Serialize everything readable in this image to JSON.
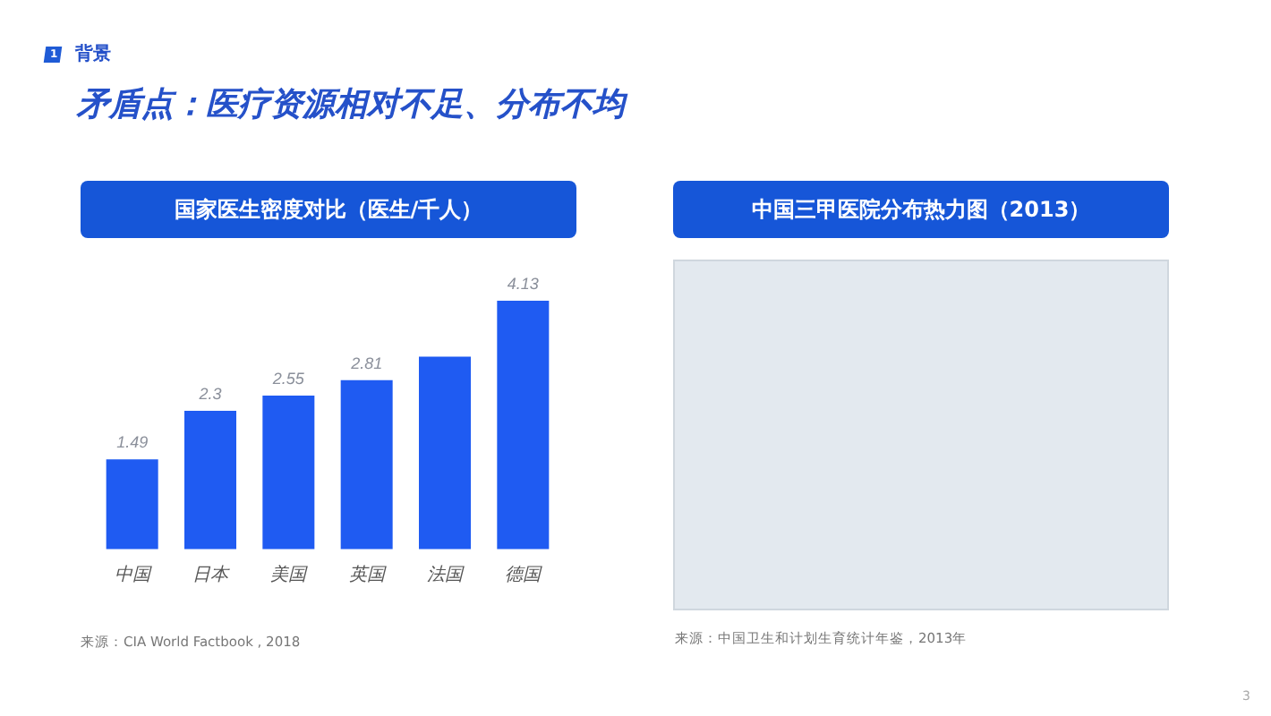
{
  "chart_data": [
    {
      "type": "bar",
      "title": "矛盾点：医疗资源相对不足、分布不均",
      "subtitle": "国家医生密度对比（医生/千人）",
      "categories": [
        "中国",
        "日本",
        "美国",
        "英国",
        "法国",
        "德国"
      ],
      "values": [
        1.49,
        2.3,
        2.55,
        2.81,
        3.2,
        4.13
      ],
      "value_labels": [
        "1.49",
        "2.3",
        "2.55",
        "2.81",
        null,
        "4.13"
      ],
      "color": "#1f5bf2",
      "annotations": [
        "1",
        "背景",
        "来源：CIA World Factbook , 2018"
      ]
    },
    {
      "type": "other",
      "title": "中国三甲医院分布热力图（2013）",
      "annotations": [
        "来源：中国卫生和计划生育统计年鉴，2013年",
        "3"
      ]
    }
  ]
}
